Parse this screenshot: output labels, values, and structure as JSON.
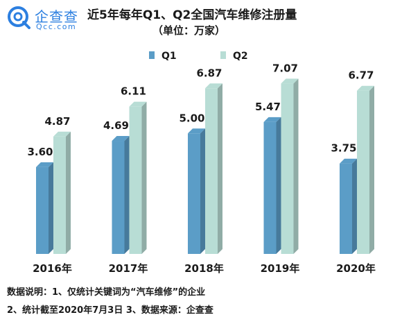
{
  "brand": {
    "name": "企查查",
    "domain": "Qcc.com",
    "color": "#2c7fe0"
  },
  "header": {
    "title": "近5年每年Q1、Q2全国汽车维修注册量",
    "subtitle": "（单位：万家）"
  },
  "notes": {
    "line1": "数据说明：1、仅统计关键词为“汽车维修”的企业",
    "line2": "2、统计截至2020年7月3日   3、数据来源：企查查"
  },
  "chart_data": {
    "type": "bar",
    "style": "3d-grouped",
    "categories": [
      "2016年",
      "2017年",
      "2018年",
      "2019年",
      "2020年"
    ],
    "series": [
      {
        "name": "Q1",
        "values": [
          3.6,
          4.69,
          5.0,
          5.47,
          3.75
        ],
        "color": "#5b9dc7"
      },
      {
        "name": "Q2",
        "values": [
          4.87,
          6.11,
          6.87,
          7.07,
          6.77
        ],
        "color": "#b8ddd5"
      }
    ],
    "ylim": [
      0,
      8
    ],
    "grid": false,
    "legend": "top-center",
    "data_labels": true
  }
}
